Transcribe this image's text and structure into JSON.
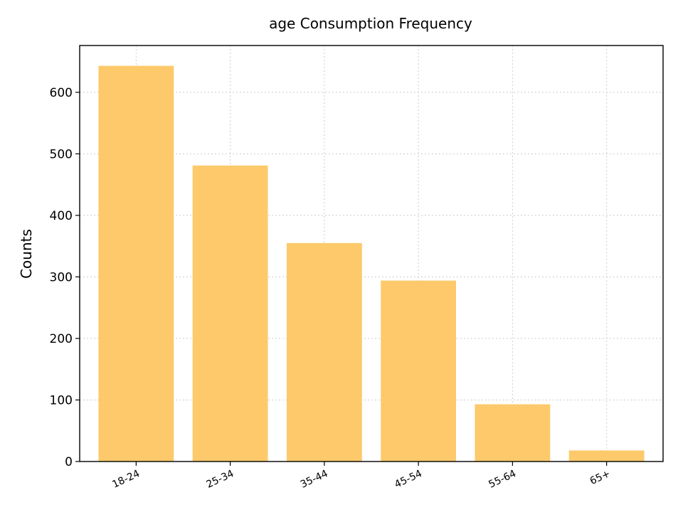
{
  "chart_data": {
    "type": "bar",
    "title": "age Consumption Frequency",
    "xlabel": "",
    "ylabel": "Counts",
    "categories": [
      "18-24",
      "25-34",
      "35-44",
      "45-54",
      "55-64",
      "65+"
    ],
    "values": [
      643,
      481,
      355,
      294,
      93,
      18
    ],
    "ylim": [
      0,
      676
    ],
    "yticks": [
      0,
      100,
      200,
      300,
      400,
      500,
      600
    ],
    "grid": true,
    "bar_color": "#fdc96b",
    "legend": "none"
  }
}
